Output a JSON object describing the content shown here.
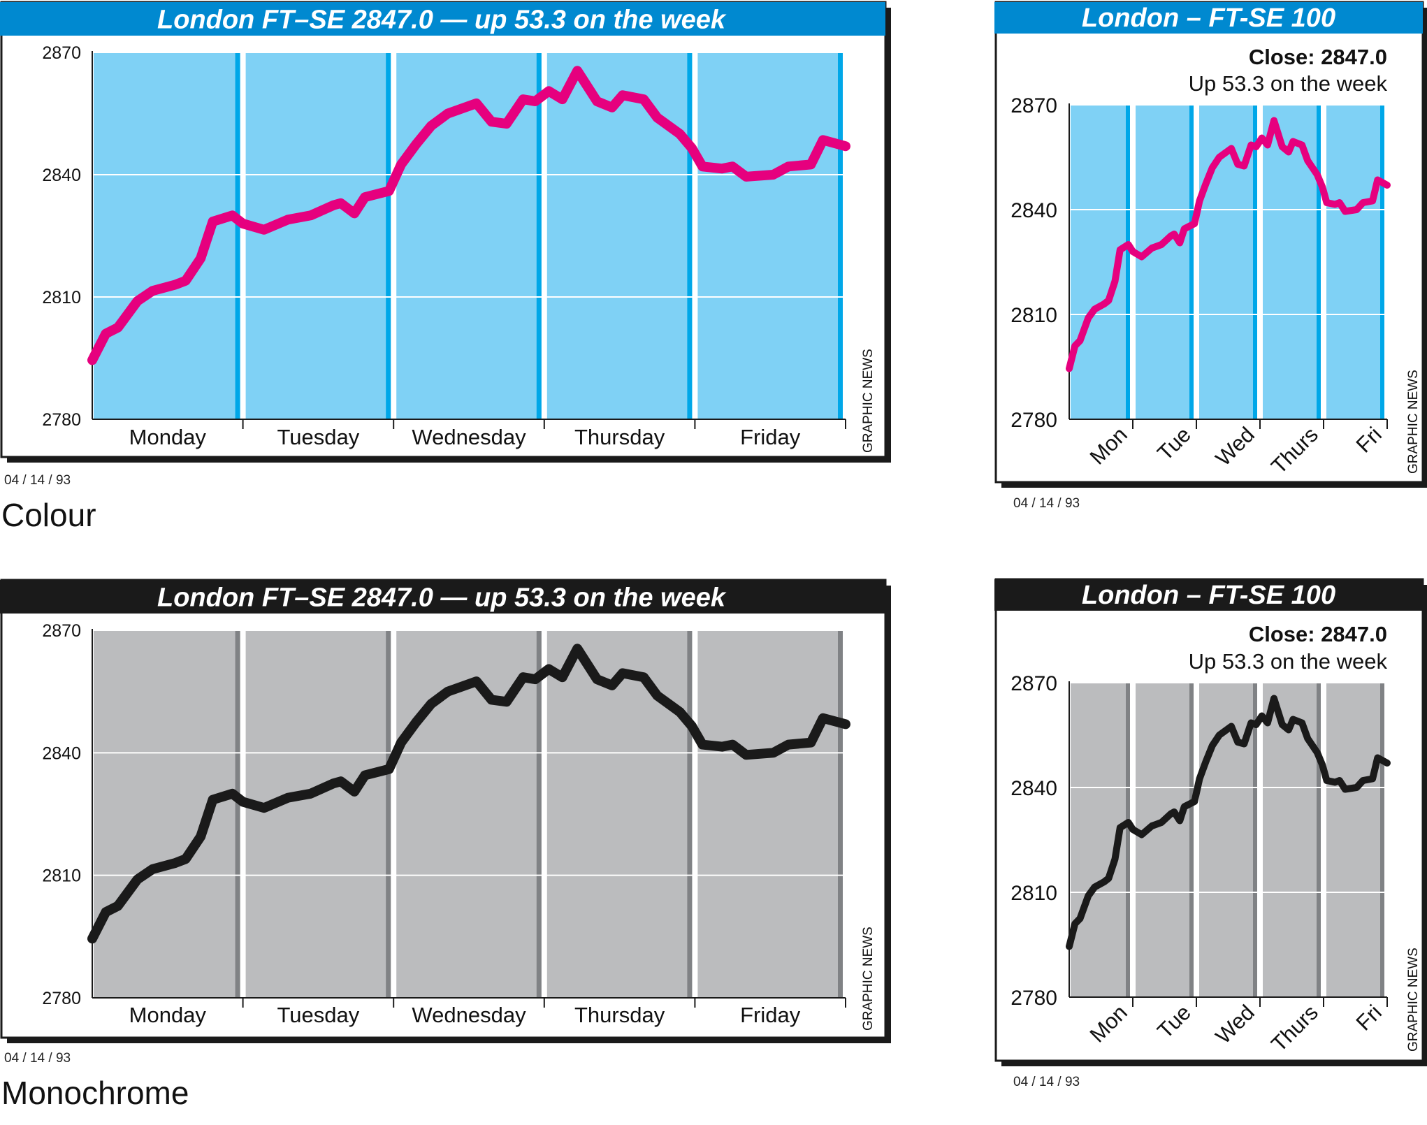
{
  "labels": {
    "colour": "Colour",
    "monochrome": "Monochrome",
    "date": "04 / 14 / 93",
    "credit": "GRAPHIC NEWS"
  },
  "styles": {
    "colour": {
      "plot_bg": "#7fd1f5",
      "divider": "#00a7e8",
      "line": "#e6007e",
      "header_bg": "#0089d0",
      "header_text": "#ffffff"
    },
    "mono": {
      "plot_bg": "#bbbcbe",
      "divider": "#808285",
      "line": "#1a1a1a",
      "header_bg": "#1a1a1a",
      "header_text": "#ffffff"
    }
  },
  "chart_data": [
    {
      "id": "wide-colour",
      "type": "line",
      "variant": "wide",
      "style": "colour",
      "title": "London FT–SE 2847.0 — up 53.3 on the week",
      "ylim": [
        2780,
        2870
      ],
      "yticks": [
        2780,
        2810,
        2840,
        2870
      ],
      "categories": [
        "Monday",
        "Tuesday",
        "Wednesday",
        "Thursday",
        "Friday"
      ],
      "grid": true
    },
    {
      "id": "small-colour",
      "type": "line",
      "variant": "small",
      "style": "colour",
      "title": "London – FT-SE 100",
      "close": "Close: 2847.0",
      "subtitle": "Up 53.3 on the week",
      "ylim": [
        2780,
        2870
      ],
      "yticks": [
        2780,
        2810,
        2840,
        2870
      ],
      "categories": [
        "Mon",
        "Tue",
        "Wed",
        "Thurs",
        "Fri"
      ],
      "grid": true
    },
    {
      "id": "wide-mono",
      "type": "line",
      "variant": "wide",
      "style": "mono",
      "title": "London FT–SE 2847.0 — up 53.3 on the week",
      "ylim": [
        2780,
        2870
      ],
      "yticks": [
        2780,
        2810,
        2840,
        2870
      ],
      "categories": [
        "Monday",
        "Tuesday",
        "Wednesday",
        "Thursday",
        "Friday"
      ],
      "grid": true
    },
    {
      "id": "small-mono",
      "type": "line",
      "variant": "small",
      "style": "mono",
      "title": "London – FT-SE 100",
      "close": "Close: 2847.0",
      "subtitle": "Up 53.3 on the week",
      "ylim": [
        2780,
        2870
      ],
      "yticks": [
        2780,
        2810,
        2840,
        2870
      ],
      "categories": [
        "Mon",
        "Tue",
        "Wed",
        "Thurs",
        "Fri"
      ],
      "grid": true
    }
  ],
  "series": {
    "x_unit": "trading day (0 = Monday open, 5 = Friday close)",
    "points": [
      [
        0.0,
        2794.5
      ],
      [
        0.09,
        2801.0
      ],
      [
        0.17,
        2802.5
      ],
      [
        0.3,
        2809.0
      ],
      [
        0.4,
        2811.5
      ],
      [
        0.55,
        2813.0
      ],
      [
        0.62,
        2814.0
      ],
      [
        0.72,
        2819.5
      ],
      [
        0.8,
        2828.5
      ],
      [
        0.93,
        2830.0
      ],
      [
        1.0,
        2828.0
      ],
      [
        1.14,
        2826.5
      ],
      [
        1.3,
        2829.0
      ],
      [
        1.45,
        2830.0
      ],
      [
        1.6,
        2832.5
      ],
      [
        1.65,
        2833.0
      ],
      [
        1.74,
        2830.5
      ],
      [
        1.81,
        2834.5
      ],
      [
        1.97,
        2836.0
      ],
      [
        2.05,
        2842.5
      ],
      [
        2.15,
        2847.5
      ],
      [
        2.25,
        2852.0
      ],
      [
        2.36,
        2855.0
      ],
      [
        2.55,
        2857.5
      ],
      [
        2.65,
        2853.0
      ],
      [
        2.75,
        2852.5
      ],
      [
        2.86,
        2858.5
      ],
      [
        2.94,
        2858.0
      ],
      [
        3.03,
        2860.5
      ],
      [
        3.12,
        2858.5
      ],
      [
        3.22,
        2865.5
      ],
      [
        3.35,
        2858.0
      ],
      [
        3.45,
        2856.5
      ],
      [
        3.52,
        2859.5
      ],
      [
        3.66,
        2858.5
      ],
      [
        3.75,
        2854.0
      ],
      [
        3.9,
        2850.0
      ],
      [
        3.98,
        2846.5
      ],
      [
        4.05,
        2842.0
      ],
      [
        4.18,
        2841.5
      ],
      [
        4.25,
        2842.0
      ],
      [
        4.34,
        2839.5
      ],
      [
        4.52,
        2840.0
      ],
      [
        4.62,
        2842.0
      ],
      [
        4.77,
        2842.5
      ],
      [
        4.85,
        2848.5
      ],
      [
        5.0,
        2847.0
      ]
    ]
  }
}
